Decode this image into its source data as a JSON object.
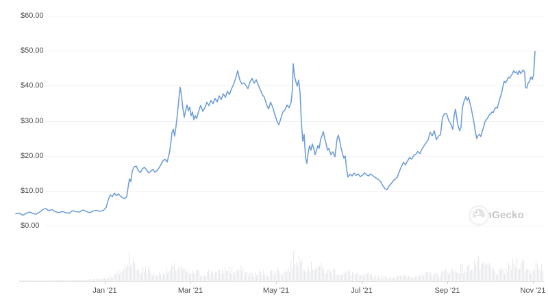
{
  "watermark": {
    "label": "CoinGecko"
  },
  "chart_data": {
    "type": "line",
    "legend": "none",
    "grid": "horizontal",
    "y_axis": {
      "unit": "USD",
      "range": [
        0,
        60
      ],
      "tick_values": [
        60,
        50,
        40,
        30,
        20,
        10,
        0
      ],
      "tick_labels": [
        "$60.00",
        "$50.00",
        "$40.00",
        "$30.00",
        "$20.00",
        "$10.00",
        "$0.00"
      ]
    },
    "x_axis": {
      "tick_labels": [
        "Jan '21",
        "Mar '21",
        "May '21",
        "Jul '21",
        "Sep '21",
        "Nov '21"
      ]
    },
    "price_series": {
      "name": "price",
      "color": "#6f9ed8",
      "x_normalized_0_to_1": true,
      "points": [
        [
          0,
          3.4
        ],
        [
          0.0066,
          3.6
        ],
        [
          0.0132,
          3.0
        ],
        [
          0.0198,
          3.5
        ],
        [
          0.0264,
          3.9
        ],
        [
          0.033,
          3.5
        ],
        [
          0.0396,
          3.3
        ],
        [
          0.0462,
          3.9
        ],
        [
          0.0528,
          4.7
        ],
        [
          0.0581,
          4.9
        ],
        [
          0.0633,
          4.3
        ],
        [
          0.0699,
          4.6
        ],
        [
          0.0765,
          4.0
        ],
        [
          0.0831,
          3.7
        ],
        [
          0.0897,
          4.1
        ],
        [
          0.0963,
          3.7
        ],
        [
          0.1029,
          3.6
        ],
        [
          0.1095,
          4.3
        ],
        [
          0.1161,
          4.0
        ],
        [
          0.1227,
          3.9
        ],
        [
          0.1293,
          4.5
        ],
        [
          0.1359,
          4.1
        ],
        [
          0.1425,
          3.7
        ],
        [
          0.1491,
          4.2
        ],
        [
          0.1557,
          4.4
        ],
        [
          0.1623,
          4.1
        ],
        [
          0.1689,
          4.4
        ],
        [
          0.1742,
          5.2
        ],
        [
          0.1781,
          7.4
        ],
        [
          0.1821,
          8.8
        ],
        [
          0.186,
          8.3
        ],
        [
          0.19,
          9.3
        ],
        [
          0.1939,
          8.6
        ],
        [
          0.1979,
          9.1
        ],
        [
          0.2018,
          8.4
        ],
        [
          0.2058,
          8.0
        ],
        [
          0.2098,
          7.7
        ],
        [
          0.2137,
          8.3
        ],
        [
          0.2164,
          11.0
        ],
        [
          0.219,
          13.4
        ],
        [
          0.2216,
          12.6
        ],
        [
          0.2243,
          15.6
        ],
        [
          0.2282,
          16.8
        ],
        [
          0.2322,
          17.0
        ],
        [
          0.2361,
          15.7
        ],
        [
          0.2401,
          15.2
        ],
        [
          0.2441,
          16.3
        ],
        [
          0.248,
          16.7
        ],
        [
          0.252,
          15.9
        ],
        [
          0.2559,
          15.1
        ],
        [
          0.2599,
          15.5
        ],
        [
          0.2639,
          16.1
        ],
        [
          0.2678,
          15.3
        ],
        [
          0.2718,
          15.7
        ],
        [
          0.2757,
          16.5
        ],
        [
          0.2797,
          17.5
        ],
        [
          0.2836,
          18.6
        ],
        [
          0.2876,
          19.0
        ],
        [
          0.2916,
          18.2
        ],
        [
          0.2955,
          20.5
        ],
        [
          0.2982,
          23.0
        ],
        [
          0.3008,
          26.5
        ],
        [
          0.3034,
          27.6
        ],
        [
          0.3061,
          25.6
        ],
        [
          0.3087,
          28.5
        ],
        [
          0.3114,
          32.0
        ],
        [
          0.314,
          36.0
        ],
        [
          0.3166,
          39.6
        ],
        [
          0.3193,
          37.0
        ],
        [
          0.3219,
          33.5
        ],
        [
          0.3245,
          31.0
        ],
        [
          0.3272,
          33.0
        ],
        [
          0.3298,
          34.5
        ],
        [
          0.3325,
          32.8
        ],
        [
          0.3351,
          33.9
        ],
        [
          0.3377,
          31.4
        ],
        [
          0.3404,
          32.5
        ],
        [
          0.343,
          30.3
        ],
        [
          0.3456,
          31.5
        ],
        [
          0.3483,
          30.6
        ],
        [
          0.3509,
          32.0
        ],
        [
          0.3536,
          33.3
        ],
        [
          0.3562,
          34.4
        ],
        [
          0.3602,
          32.7
        ],
        [
          0.3641,
          33.7
        ],
        [
          0.3681,
          35.3
        ],
        [
          0.372,
          34.3
        ],
        [
          0.376,
          35.8
        ],
        [
          0.3799,
          34.9
        ],
        [
          0.3839,
          36.4
        ],
        [
          0.3879,
          35.4
        ],
        [
          0.3918,
          37.1
        ],
        [
          0.3958,
          36.1
        ],
        [
          0.3997,
          37.7
        ],
        [
          0.4037,
          36.7
        ],
        [
          0.4076,
          38.4
        ],
        [
          0.4116,
          37.5
        ],
        [
          0.4156,
          39.1
        ],
        [
          0.4195,
          40.4
        ],
        [
          0.4235,
          42.1
        ],
        [
          0.4274,
          44.3
        ],
        [
          0.4314,
          41.7
        ],
        [
          0.4354,
          40.5
        ],
        [
          0.4393,
          40.8
        ],
        [
          0.4433,
          40.1
        ],
        [
          0.4472,
          39.2
        ],
        [
          0.4512,
          41.1
        ],
        [
          0.4551,
          42.1
        ],
        [
          0.4591,
          40.7
        ],
        [
          0.4631,
          41.7
        ],
        [
          0.467,
          40.2
        ],
        [
          0.471,
          38.9
        ],
        [
          0.4749,
          37.4
        ],
        [
          0.4789,
          36.7
        ],
        [
          0.4828,
          34.7
        ],
        [
          0.4868,
          33.3
        ],
        [
          0.4908,
          35.3
        ],
        [
          0.4947,
          33.9
        ],
        [
          0.4987,
          31.9
        ],
        [
          0.5026,
          30.1
        ],
        [
          0.5066,
          28.8
        ],
        [
          0.5106,
          30.6
        ],
        [
          0.5145,
          32.5
        ],
        [
          0.5185,
          33.1
        ],
        [
          0.5224,
          34.5
        ],
        [
          0.5264,
          33.7
        ],
        [
          0.5303,
          35.3
        ],
        [
          0.533,
          39.1
        ],
        [
          0.5343,
          46.3
        ],
        [
          0.5369,
          42.7
        ],
        [
          0.5396,
          41.1
        ],
        [
          0.5422,
          39.9
        ],
        [
          0.5449,
          41.6
        ],
        [
          0.5475,
          38.1
        ],
        [
          0.5501,
          29.4
        ],
        [
          0.5528,
          24.1
        ],
        [
          0.5554,
          26.1
        ],
        [
          0.558,
          19.6
        ],
        [
          0.5607,
          17.8
        ],
        [
          0.5633,
          21.0
        ],
        [
          0.566,
          22.9
        ],
        [
          0.5686,
          21.6
        ],
        [
          0.5712,
          23.4
        ],
        [
          0.5739,
          22.1
        ],
        [
          0.5765,
          20.3
        ],
        [
          0.5791,
          21.6
        ],
        [
          0.5818,
          22.9
        ],
        [
          0.5844,
          22.1
        ],
        [
          0.5871,
          24.6
        ],
        [
          0.5897,
          25.7
        ],
        [
          0.5923,
          26.9
        ],
        [
          0.595,
          25.0
        ],
        [
          0.5976,
          23.5
        ],
        [
          0.6003,
          21.6
        ],
        [
          0.6029,
          22.1
        ],
        [
          0.6068,
          20.3
        ],
        [
          0.6108,
          21.1
        ],
        [
          0.6148,
          19.7
        ],
        [
          0.6187,
          24.7
        ],
        [
          0.6214,
          25.9
        ],
        [
          0.624,
          24.1
        ],
        [
          0.6266,
          22.1
        ],
        [
          0.6293,
          20.6
        ],
        [
          0.6319,
          19.3
        ],
        [
          0.6346,
          19.9
        ],
        [
          0.6372,
          16.1
        ],
        [
          0.6398,
          13.9
        ],
        [
          0.6438,
          14.7
        ],
        [
          0.6477,
          14.2
        ],
        [
          0.6517,
          15.0
        ],
        [
          0.6557,
          14.4
        ],
        [
          0.6596,
          14.8
        ],
        [
          0.6636,
          14.0
        ],
        [
          0.6675,
          14.4
        ],
        [
          0.6715,
          15.1
        ],
        [
          0.6754,
          14.6
        ],
        [
          0.6794,
          14.2
        ],
        [
          0.6834,
          14.8
        ],
        [
          0.6873,
          14.3
        ],
        [
          0.6913,
          13.9
        ],
        [
          0.6952,
          13.5
        ],
        [
          0.6992,
          13.1
        ],
        [
          0.7031,
          12.5
        ],
        [
          0.7071,
          11.4
        ],
        [
          0.7111,
          10.6
        ],
        [
          0.715,
          10.3
        ],
        [
          0.719,
          11.4
        ],
        [
          0.7229,
          12.0
        ],
        [
          0.7269,
          12.8
        ],
        [
          0.7308,
          13.3
        ],
        [
          0.7348,
          13.9
        ],
        [
          0.7388,
          15.5
        ],
        [
          0.7427,
          16.9
        ],
        [
          0.7467,
          18.1
        ],
        [
          0.7506,
          17.4
        ],
        [
          0.7546,
          18.5
        ],
        [
          0.7586,
          19.5
        ],
        [
          0.7625,
          19.0
        ],
        [
          0.7665,
          20.1
        ],
        [
          0.7704,
          20.4
        ],
        [
          0.7744,
          21.2
        ],
        [
          0.7783,
          20.6
        ],
        [
          0.7823,
          21.9
        ],
        [
          0.7863,
          22.8
        ],
        [
          0.7902,
          23.7
        ],
        [
          0.7942,
          24.5
        ],
        [
          0.7981,
          26.7
        ],
        [
          0.8021,
          25.7
        ],
        [
          0.8061,
          27.1
        ],
        [
          0.81,
          24.6
        ],
        [
          0.814,
          25.6
        ],
        [
          0.8179,
          26.0
        ],
        [
          0.8219,
          30.9
        ],
        [
          0.8258,
          32.1
        ],
        [
          0.8298,
          32.0
        ],
        [
          0.8338,
          30.1
        ],
        [
          0.8377,
          29.1
        ],
        [
          0.8417,
          27.5
        ],
        [
          0.8443,
          31.6
        ],
        [
          0.847,
          33.3
        ],
        [
          0.8509,
          29.1
        ],
        [
          0.8549,
          27.1
        ],
        [
          0.8575,
          28.1
        ],
        [
          0.8602,
          33.6
        ],
        [
          0.8628,
          35.3
        ],
        [
          0.8668,
          36.9
        ],
        [
          0.8694,
          35.8
        ],
        [
          0.872,
          36.7
        ],
        [
          0.8747,
          35.1
        ],
        [
          0.8773,
          33.5
        ],
        [
          0.8799,
          31.4
        ],
        [
          0.8826,
          29.4
        ],
        [
          0.8852,
          26.7
        ],
        [
          0.8879,
          24.9
        ],
        [
          0.8905,
          25.8
        ],
        [
          0.8931,
          26.1
        ],
        [
          0.8958,
          25.5
        ],
        [
          0.8984,
          27.0
        ],
        [
          0.901,
          28.1
        ],
        [
          0.9037,
          29.7
        ],
        [
          0.9063,
          30.3
        ],
        [
          0.909,
          30.8
        ],
        [
          0.9116,
          31.6
        ],
        [
          0.9142,
          31.9
        ],
        [
          0.9169,
          32.5
        ],
        [
          0.9195,
          32.3
        ],
        [
          0.9222,
          33.3
        ],
        [
          0.9248,
          33.8
        ],
        [
          0.9274,
          33.6
        ],
        [
          0.9301,
          35.1
        ],
        [
          0.9327,
          36.5
        ],
        [
          0.9353,
          37.7
        ],
        [
          0.938,
          39.6
        ],
        [
          0.9406,
          41.3
        ],
        [
          0.9433,
          40.8
        ],
        [
          0.9459,
          41.5
        ],
        [
          0.9485,
          42.4
        ],
        [
          0.9512,
          42.2
        ],
        [
          0.9538,
          42.8
        ],
        [
          0.9565,
          43.4
        ],
        [
          0.9591,
          44.3
        ],
        [
          0.9617,
          43.7
        ],
        [
          0.9644,
          44.0
        ],
        [
          0.967,
          43.2
        ],
        [
          0.9696,
          44.3
        ],
        [
          0.9723,
          43.5
        ],
        [
          0.9749,
          44.0
        ],
        [
          0.9776,
          44.5
        ],
        [
          0.9802,
          43.8
        ],
        [
          0.9815,
          39.7
        ],
        [
          0.9842,
          39.3
        ],
        [
          0.9868,
          40.8
        ],
        [
          0.9894,
          41.2
        ],
        [
          0.9921,
          42.5
        ],
        [
          0.9947,
          41.8
        ],
        [
          0.9974,
          43.1
        ],
        [
          0.9987,
          46.5
        ],
        [
          1,
          49.8
        ]
      ]
    },
    "volume_series": {
      "name": "volume",
      "color": "#e8e9ec",
      "note": "relative bar heights sampled evenly across the time range",
      "values": [
        1,
        1,
        2,
        1,
        2,
        1,
        2,
        1,
        2,
        1,
        2,
        2,
        2,
        3,
        4,
        5,
        7,
        10,
        16,
        22,
        52,
        26,
        18,
        26,
        14,
        12,
        16,
        18,
        24,
        27,
        18,
        14,
        18,
        12,
        15,
        20,
        14,
        20,
        24,
        18,
        22,
        16,
        14,
        12,
        16,
        13,
        18,
        22,
        16,
        25,
        46,
        38,
        30,
        26,
        32,
        22,
        18,
        20,
        16,
        14,
        18,
        12,
        10,
        12,
        9,
        10,
        8,
        7,
        9,
        8,
        11,
        9,
        12,
        10,
        13,
        15,
        12,
        16,
        22,
        18,
        25,
        20,
        30,
        38,
        24,
        30,
        20,
        16,
        20,
        26,
        34,
        40,
        22,
        18,
        38,
        20
      ]
    }
  }
}
